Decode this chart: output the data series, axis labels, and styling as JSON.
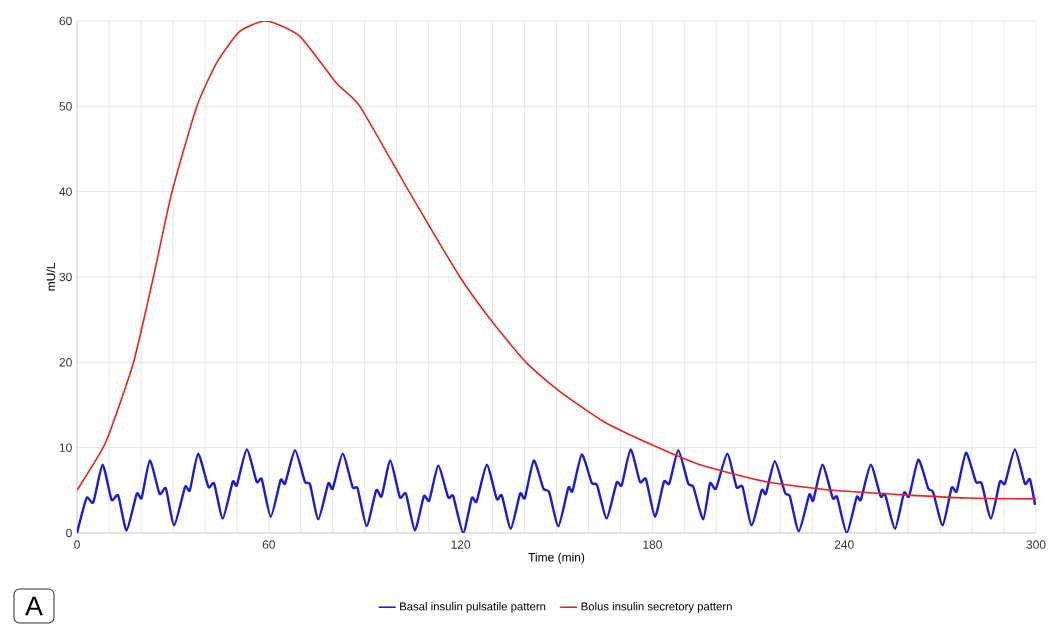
{
  "chart_data": {
    "type": "line",
    "xlabel": "Time (min)",
    "ylabel": "mU/L",
    "xlim": [
      0,
      300
    ],
    "ylim": [
      0,
      60
    ],
    "xticks": [
      0,
      {
        "value": 10,
        "label": null
      },
      {
        "value": 20,
        "label": null
      },
      {
        "value": 30,
        "label": null
      },
      {
        "value": 40,
        "label": null
      },
      {
        "value": 50,
        "label": null
      },
      60,
      {
        "value": 70,
        "label": null
      },
      {
        "value": 80,
        "label": null
      },
      {
        "value": 90,
        "label": null
      },
      {
        "value": 100,
        "label": null
      },
      {
        "value": 110,
        "label": null
      },
      120,
      {
        "value": 130,
        "label": null
      },
      {
        "value": 140,
        "label": null
      },
      {
        "value": 150,
        "label": null
      },
      {
        "value": 160,
        "label": null
      },
      {
        "value": 170,
        "label": null
      },
      180,
      {
        "value": 190,
        "label": null
      },
      {
        "value": 200,
        "label": null
      },
      {
        "value": 210,
        "label": null
      },
      {
        "value": 220,
        "label": null
      },
      {
        "value": 230,
        "label": null
      },
      240,
      {
        "value": 250,
        "label": null
      },
      {
        "value": 260,
        "label": null
      },
      {
        "value": 270,
        "label": null
      },
      {
        "value": 280,
        "label": null
      },
      {
        "value": 290,
        "label": null
      },
      300
    ],
    "yticks": [
      0,
      10,
      20,
      30,
      40,
      50,
      60
    ],
    "grid": true,
    "legend": "bottom",
    "annotations": [
      "A"
    ],
    "series": [
      {
        "name": "Basal insulin pulsatile pattern",
        "color": "#1c1cd4",
        "x": [
          0,
          3.0,
          5.1,
          8.0,
          10.8,
          12.9,
          15.5,
          18.7,
          20.2,
          22.8,
          25.8,
          27.8,
          30.4,
          33.8,
          35.3,
          37.9,
          41.1,
          42.9,
          45.6,
          48.7,
          50.0,
          53.1,
          56.2,
          57.8,
          60.6,
          63.7,
          65.1,
          68.2,
          71.3,
          72.9,
          75.5,
          78.6,
          80.0,
          83.1,
          86.2,
          87.8,
          90.6,
          93.6,
          95.3,
          98.0,
          101.0,
          102.9,
          105.7,
          108.5,
          110.2,
          113.0,
          116.1,
          117.7,
          120.8,
          123.5,
          125.0,
          128.2,
          131.3,
          132.9,
          135.7,
          138.6,
          140.1,
          142.9,
          145.9,
          147.7,
          150.6,
          153.7,
          155.0,
          157.9,
          161.0,
          162.7,
          165.7,
          168.8,
          170.4,
          173.2,
          176.1,
          178.0,
          180.8,
          183.6,
          185.3,
          188.1,
          191.2,
          192.8,
          195.9,
          198.0,
          199.9,
          203.4,
          206.3,
          208.2,
          211.0,
          214.2,
          215.5,
          218.3,
          221.5,
          223.0,
          225.8,
          229.1,
          230.3,
          233.2,
          236.4,
          237.8,
          240.8,
          243.9,
          245.2,
          248.3,
          251.4,
          252.8,
          255.9,
          258.7,
          260.3,
          263.2,
          266.3,
          267.8,
          270.8,
          273.6,
          275.2,
          278.1,
          281.2,
          283.0,
          285.9,
          288.7,
          290.3,
          293.4,
          296.5,
          298.1,
          299.7
        ],
        "values": [
          0,
          4.1,
          3.6,
          8.0,
          3.9,
          4.4,
          0.3,
          4.6,
          4.1,
          8.5,
          4.6,
          5.2,
          0.9,
          5.4,
          5.0,
          9.3,
          5.4,
          5.8,
          1.7,
          6.0,
          5.6,
          9.8,
          6.0,
          6.3,
          1.9,
          6.2,
          5.8,
          9.7,
          6.0,
          5.7,
          1.6,
          5.8,
          5.2,
          9.3,
          5.4,
          5.2,
          0.8,
          5.0,
          4.3,
          8.5,
          4.2,
          4.6,
          0.3,
          4.3,
          3.8,
          7.9,
          4.2,
          4.3,
          0.0,
          4.1,
          3.7,
          8.0,
          4.0,
          4.4,
          0.5,
          4.6,
          4.1,
          8.5,
          5.2,
          4.8,
          0.8,
          5.3,
          4.9,
          9.2,
          5.9,
          5.6,
          1.7,
          5.9,
          5.6,
          9.8,
          6.0,
          6.3,
          1.9,
          6.0,
          5.8,
          9.7,
          5.8,
          5.4,
          1.6,
          5.8,
          5.2,
          9.3,
          5.4,
          5.4,
          0.9,
          5.0,
          4.6,
          8.4,
          4.7,
          4.3,
          0.2,
          4.5,
          3.8,
          8.0,
          4.1,
          4.2,
          0.0,
          4.2,
          3.9,
          8.0,
          4.3,
          4.5,
          0.5,
          4.7,
          4.3,
          8.6,
          5.2,
          4.8,
          0.9,
          5.3,
          4.9,
          9.4,
          6.0,
          5.8,
          1.7,
          6.0,
          5.8,
          9.8,
          5.8,
          6.3,
          3.3
        ]
      },
      {
        "name": "Bolus insulin secretory pattern",
        "color": "#e8241f",
        "x": [
          0,
          4,
          9.3,
          17.6,
          23.9,
          29.6,
          37.4,
          43.7,
          51,
          59.3,
          69.7,
          81.2,
          88.5,
          104.2,
          119.8,
          130.2,
          140.7,
          151,
          165,
          180,
          194.9,
          215.7,
          236.5,
          257.4,
          278.3,
          300
        ],
        "values": [
          5.0,
          7.4,
          10.9,
          19.9,
          30.0,
          39.8,
          49.9,
          55.1,
          58.8,
          60.0,
          58.2,
          52.7,
          50.0,
          39.8,
          30.0,
          24.6,
          19.9,
          16.6,
          13.0,
          10.3,
          8.0,
          6.0,
          5.0,
          4.5,
          4.1,
          4.0
        ]
      }
    ]
  }
}
